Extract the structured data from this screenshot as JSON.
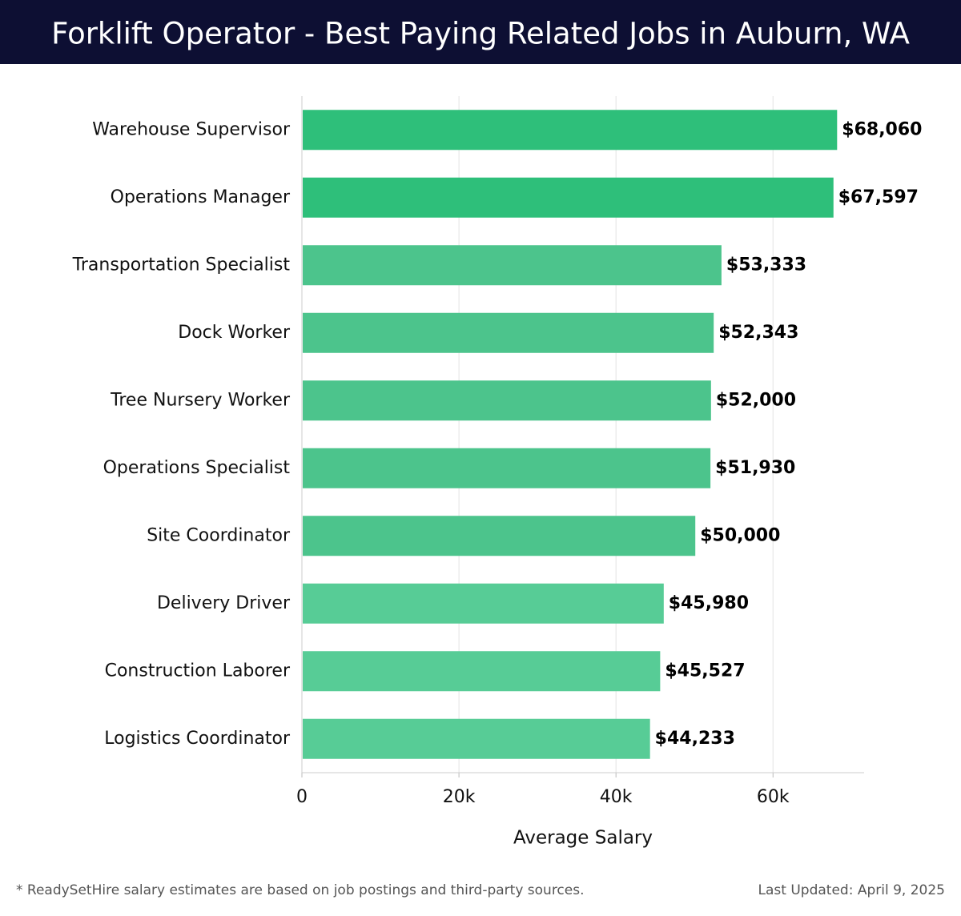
{
  "chart_data": {
    "type": "bar",
    "orientation": "horizontal",
    "title": "Forklift Operator - Best Paying Related Jobs in Auburn, WA",
    "categories": [
      "Warehouse Supervisor",
      "Operations Manager",
      "Transportation Specialist",
      "Dock Worker",
      "Tree Nursery Worker",
      "Operations Specialist",
      "Site Coordinator",
      "Delivery Driver",
      "Construction Laborer",
      "Logistics Coordinator"
    ],
    "values": [
      68060,
      67597,
      53333,
      52343,
      52000,
      51930,
      50000,
      45980,
      45527,
      44233
    ],
    "value_labels": [
      "$68,060",
      "$67,597",
      "$53,333",
      "$52,343",
      "$52,000",
      "$51,930",
      "$50,000",
      "$45,980",
      "$45,527",
      "$44,233"
    ],
    "colors": [
      "#2ebf7a",
      "#2ebf7a",
      "#4cc48c",
      "#4cc48c",
      "#4cc48c",
      "#4cc48c",
      "#4cc48c",
      "#57cc96",
      "#57cc96",
      "#57cc96"
    ],
    "xlabel": "Average Salary",
    "xlim": [
      0,
      71600
    ],
    "xticks": [
      0,
      {
        "value": 20000,
        "label": "20k"
      },
      {
        "value": 40000,
        "label": "40k"
      },
      {
        "value": 60000,
        "label": "60k"
      }
    ],
    "grid": true,
    "footnote": "* ReadySetHire salary estimates are based on job postings and third-party sources.",
    "updated": "Last Updated: April 9, 2025"
  }
}
